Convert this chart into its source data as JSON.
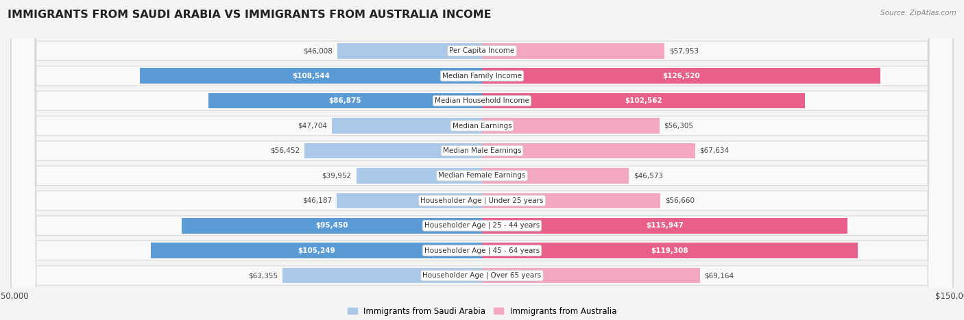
{
  "title": "IMMIGRANTS FROM SAUDI ARABIA VS IMMIGRANTS FROM AUSTRALIA INCOME",
  "source": "Source: ZipAtlas.com",
  "categories": [
    "Per Capita Income",
    "Median Family Income",
    "Median Household Income",
    "Median Earnings",
    "Median Male Earnings",
    "Median Female Earnings",
    "Householder Age | Under 25 years",
    "Householder Age | 25 - 44 years",
    "Householder Age | 45 - 64 years",
    "Householder Age | Over 65 years"
  ],
  "saudi_values": [
    46008,
    108544,
    86875,
    47704,
    56452,
    39952,
    46187,
    95450,
    105249,
    63355
  ],
  "australia_values": [
    57953,
    126520,
    102562,
    56305,
    67634,
    46573,
    56660,
    115947,
    119308,
    69164
  ],
  "saudi_color_light": "#aac8e8",
  "saudi_color_dark": "#5b9bd5",
  "australia_color_light": "#f4a7c0",
  "australia_color_dark": "#e8608a",
  "saudi_label": "Immigrants from Saudi Arabia",
  "australia_label": "Immigrants from Australia",
  "max_value": 150000,
  "background_color": "#f4f4f4",
  "row_bg_color": "#f9f9f9",
  "row_border_color": "#d8d8d8",
  "title_fontsize": 11.5,
  "label_fontsize": 7.5,
  "value_fontsize": 7.5,
  "legend_fontsize": 8.5,
  "saudi_threshold": 70000,
  "australia_threshold": 80000
}
